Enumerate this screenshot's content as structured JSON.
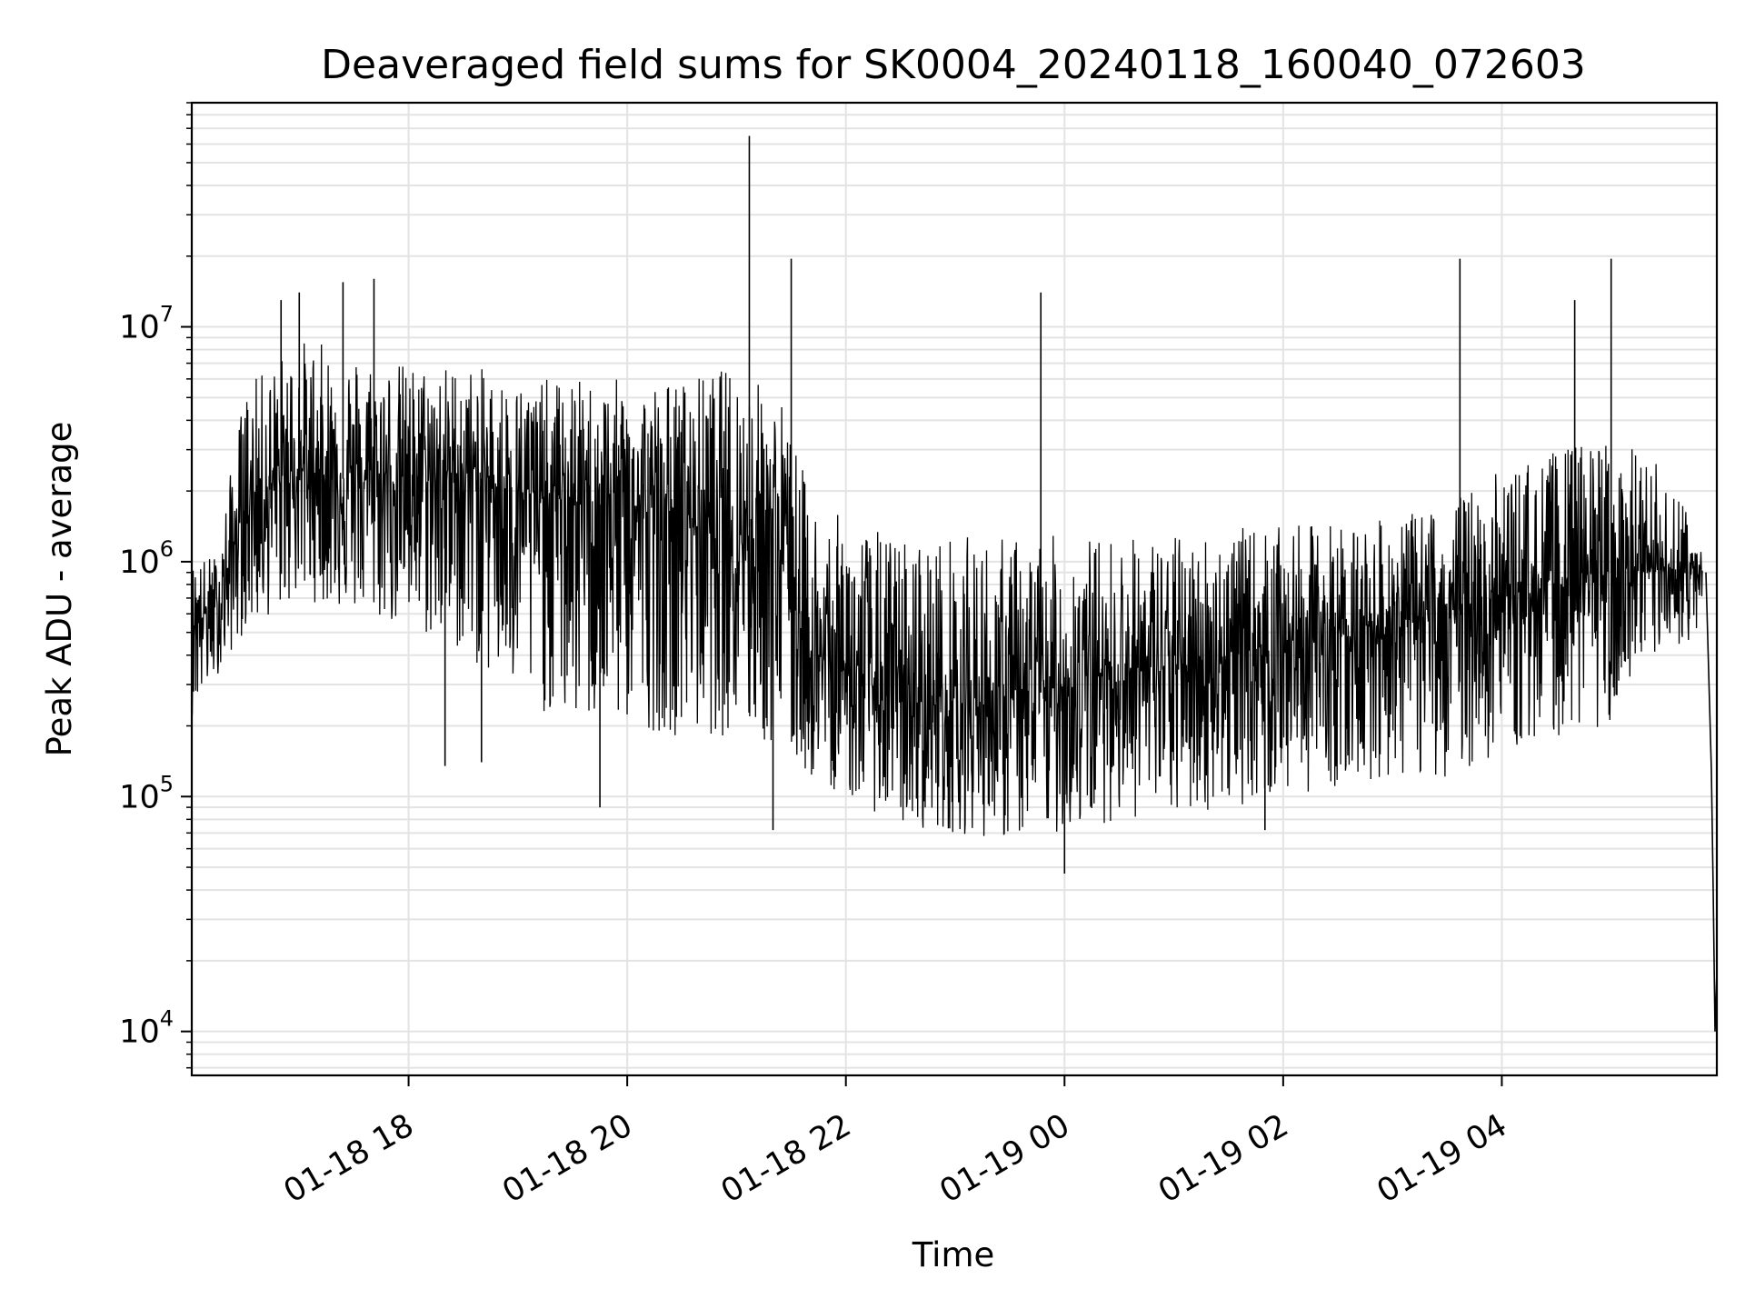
{
  "chart_data": {
    "type": "line",
    "title": "Deaveraged field sums for SK0004_20240118_160040_072603",
    "xlabel": "Time",
    "ylabel": "Peak ADU - average",
    "yscale": "log",
    "ylim": [
      6500,
      90000000
    ],
    "xlim": [
      "2024-01-18 16:01",
      "2024-01-19 05:58"
    ],
    "grid": true,
    "line_color": "#000000",
    "x_ticks": [
      {
        "value": "2024-01-18 18:00",
        "label": "01-18 18"
      },
      {
        "value": "2024-01-18 20:00",
        "label": "01-18 20"
      },
      {
        "value": "2024-01-18 22:00",
        "label": "01-18 22"
      },
      {
        "value": "2024-01-19 00:00",
        "label": "01-19 00"
      },
      {
        "value": "2024-01-19 02:00",
        "label": "01-19 02"
      },
      {
        "value": "2024-01-19 04:00",
        "label": "01-19 04"
      }
    ],
    "y_ticks": [
      {
        "value": 10000,
        "base": "10",
        "exp": "4"
      },
      {
        "value": 100000,
        "base": "10",
        "exp": "5"
      },
      {
        "value": 1000000,
        "base": "10",
        "exp": "6"
      },
      {
        "value": 10000000,
        "base": "10",
        "exp": "7"
      }
    ],
    "series": [
      {
        "envelope": [
          {
            "t": "2024-01-18 16:01",
            "low": 220000,
            "high": 1000000,
            "typical": 600000
          },
          {
            "t": "2024-01-18 16:15",
            "low": 330000,
            "high": 1100000,
            "typical": 600000
          },
          {
            "t": "2024-01-18 16:30",
            "low": 500000,
            "high": 5500000,
            "typical": 1800000
          },
          {
            "t": "2024-01-18 17:00",
            "low": 700000,
            "high": 9000000,
            "typical": 2500000
          },
          {
            "t": "2024-01-18 17:30",
            "low": 600000,
            "high": 8000000,
            "typical": 2200000
          },
          {
            "t": "2024-01-18 18:00",
            "low": 500000,
            "high": 7000000,
            "typical": 2300000
          },
          {
            "t": "2024-01-18 18:30",
            "low": 400000,
            "high": 7000000,
            "typical": 2400000
          },
          {
            "t": "2024-01-18 19:00",
            "low": 250000,
            "high": 6000000,
            "typical": 2000000
          },
          {
            "t": "2024-01-18 19:30",
            "low": 200000,
            "high": 6000000,
            "typical": 1800000
          },
          {
            "t": "2024-01-18 20:00",
            "low": 200000,
            "high": 6000000,
            "typical": 1700000
          },
          {
            "t": "2024-01-18 20:30",
            "low": 180000,
            "high": 6000000,
            "typical": 1600000
          },
          {
            "t": "2024-01-18 21:00",
            "low": 180000,
            "high": 7000000,
            "typical": 1500000
          },
          {
            "t": "2024-01-18 21:25",
            "low": 150000,
            "high": 5000000,
            "typical": 1200000
          },
          {
            "t": "2024-01-18 21:40",
            "low": 120000,
            "high": 2000000,
            "typical": 400000
          },
          {
            "t": "2024-01-18 22:00",
            "low": 100000,
            "high": 1500000,
            "typical": 350000
          },
          {
            "t": "2024-01-18 22:30",
            "low": 75000,
            "high": 1300000,
            "typical": 250000
          },
          {
            "t": "2024-01-18 23:00",
            "low": 70000,
            "high": 1300000,
            "typical": 250000
          },
          {
            "t": "2024-01-18 23:30",
            "low": 65000,
            "high": 1300000,
            "typical": 250000
          },
          {
            "t": "2024-01-19 00:00",
            "low": 70000,
            "high": 1300000,
            "typical": 300000
          },
          {
            "t": "2024-01-19 00:30",
            "low": 80000,
            "high": 1300000,
            "typical": 350000
          },
          {
            "t": "2024-01-19 01:00",
            "low": 80000,
            "high": 1300000,
            "typical": 350000
          },
          {
            "t": "2024-01-19 01:30",
            "low": 90000,
            "high": 1400000,
            "typical": 400000
          },
          {
            "t": "2024-01-19 02:00",
            "low": 100000,
            "high": 1400000,
            "typical": 450000
          },
          {
            "t": "2024-01-19 02:30",
            "low": 110000,
            "high": 1500000,
            "typical": 500000
          },
          {
            "t": "2024-01-19 03:00",
            "low": 120000,
            "high": 1500000,
            "typical": 550000
          },
          {
            "t": "2024-01-19 03:30",
            "low": 120000,
            "high": 1800000,
            "typical": 600000
          },
          {
            "t": "2024-01-19 04:00",
            "low": 150000,
            "high": 2500000,
            "typical": 700000
          },
          {
            "t": "2024-01-19 04:30",
            "low": 180000,
            "high": 3000000,
            "typical": 800000
          },
          {
            "t": "2024-01-19 05:00",
            "low": 200000,
            "high": 3500000,
            "typical": 900000
          },
          {
            "t": "2024-01-19 05:30",
            "low": 400000,
            "high": 2500000,
            "typical": 900000
          },
          {
            "t": "2024-01-19 05:50",
            "low": 500000,
            "high": 1300000,
            "typical": 900000
          }
        ],
        "spikes": [
          {
            "t": "2024-01-18 16:50",
            "value": 13000000
          },
          {
            "t": "2024-01-18 17:00",
            "value": 14000000
          },
          {
            "t": "2024-01-18 17:24",
            "value": 15500000
          },
          {
            "t": "2024-01-18 17:41",
            "value": 16000000
          },
          {
            "t": "2024-01-18 21:07",
            "value": 65000000
          },
          {
            "t": "2024-01-18 21:30",
            "value": 19500000
          },
          {
            "t": "2024-01-18 23:47",
            "value": 14000000
          },
          {
            "t": "2024-01-19 03:37",
            "value": 19500000
          },
          {
            "t": "2024-01-19 04:40",
            "value": 13000000
          },
          {
            "t": "2024-01-19 05:00",
            "value": 19500000
          }
        ],
        "dips": [
          {
            "t": "2024-01-18 18:20",
            "value": 135000
          },
          {
            "t": "2024-01-18 18:40",
            "value": 140000
          },
          {
            "t": "2024-01-18 19:45",
            "value": 90000
          },
          {
            "t": "2024-01-18 21:20",
            "value": 72000
          },
          {
            "t": "2024-01-19 00:00",
            "value": 47000
          },
          {
            "t": "2024-01-19 01:50",
            "value": 72000
          }
        ],
        "tail": [
          {
            "t": "2024-01-19 05:52",
            "value": 900000
          },
          {
            "t": "2024-01-19 05:55",
            "value": 130000
          },
          {
            "t": "2024-01-19 05:56",
            "value": 40000
          },
          {
            "t": "2024-01-19 05:57",
            "value": 10000
          },
          {
            "t": "2024-01-19 05:58",
            "value": 18000
          }
        ]
      }
    ]
  }
}
